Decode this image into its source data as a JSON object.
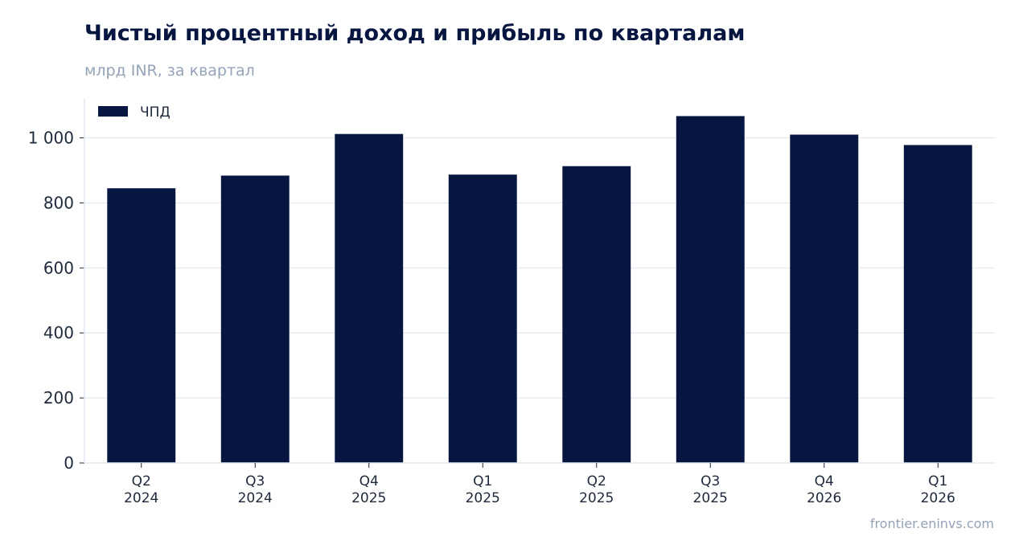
{
  "title": "Чистый процентный доход и прибыль по кварталам",
  "subtitle": "млрд INR, за квартал",
  "source": "frontier.eninvs.com",
  "colors": {
    "bar": "#061640",
    "grid": "#e2e8f0",
    "axis": "#cbd5e1",
    "text": "#1e293b",
    "muted": "#94a3b8"
  },
  "chart_data": {
    "type": "bar",
    "categories": [
      [
        "Q2",
        "2024"
      ],
      [
        "Q3",
        "2024"
      ],
      [
        "Q4",
        "2025"
      ],
      [
        "Q1",
        "2025"
      ],
      [
        "Q2",
        "2025"
      ],
      [
        "Q3",
        "2025"
      ],
      [
        "Q4",
        "2026"
      ],
      [
        "Q1",
        "2026"
      ]
    ],
    "series": [
      {
        "name": "ЧПД",
        "values": [
          845,
          884,
          1012,
          887,
          913,
          1067,
          1010,
          978
        ]
      }
    ],
    "ylim": [
      0,
      1120
    ],
    "yticks": [
      0,
      200,
      400,
      600,
      800,
      1000
    ],
    "ytick_labels": [
      "0",
      "200",
      "400",
      "600",
      "800",
      "1 000"
    ],
    "grid": true,
    "legend_position": "top-left"
  }
}
